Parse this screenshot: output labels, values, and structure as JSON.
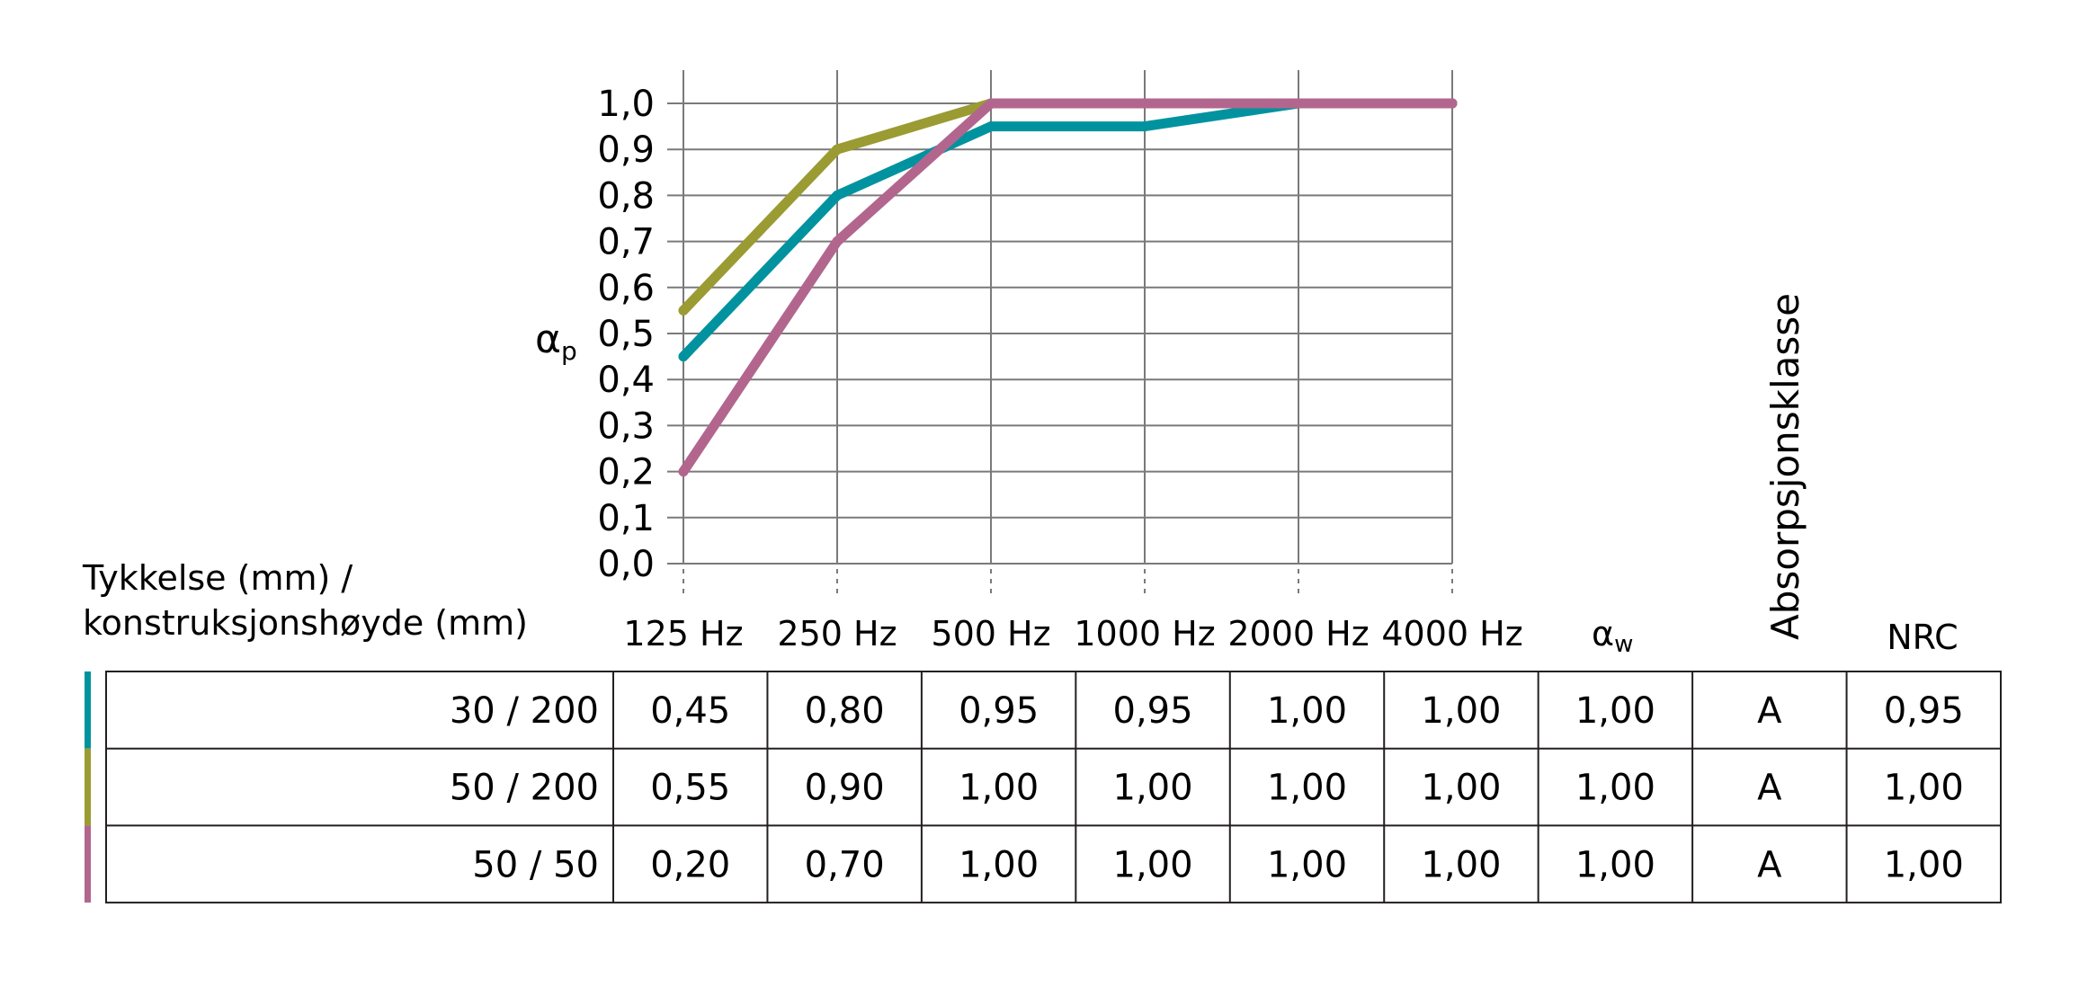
{
  "chart_data": {
    "type": "line",
    "ylabel": "αp",
    "ylabel_main": "α",
    "ylabel_sub": "p",
    "ylim": [
      0.0,
      1.0
    ],
    "yticks": [
      "0,0",
      "0,1",
      "0,2",
      "0,3",
      "0,4",
      "0,5",
      "0,6",
      "0,7",
      "0,8",
      "0,9",
      "1,0"
    ],
    "categories": [
      "125 Hz",
      "250 Hz",
      "500 Hz",
      "1000 Hz",
      "2000 Hz",
      "4000 Hz"
    ],
    "grid": true,
    "series": [
      {
        "color": "#00939f",
        "values": [
          0.45,
          0.8,
          0.95,
          0.95,
          1.0,
          1.0
        ]
      },
      {
        "color": "#9a9b32",
        "values": [
          0.55,
          0.9,
          1.0,
          1.0,
          1.0,
          1.0
        ]
      },
      {
        "color": "#b2668e",
        "values": [
          0.2,
          0.7,
          1.0,
          1.0,
          1.0,
          1.0
        ]
      }
    ]
  },
  "table": {
    "row_header_line1": "Tykkelse (mm) /",
    "row_header_line2": "konstruksjonshøyde (mm)",
    "aw_main": "α",
    "aw_sub": "w",
    "absorption_class_label": "Absorpsjonsklasse",
    "nrc_label": "NRC",
    "rows": [
      {
        "label": "30 / 200",
        "color": "#00939f",
        "values": [
          "0,45",
          "0,80",
          "0,95",
          "0,95",
          "1,00",
          "1,00",
          "1,00",
          "A",
          "0,95"
        ]
      },
      {
        "label": "50 / 200",
        "color": "#9a9b32",
        "values": [
          "0,55",
          "0,90",
          "1,00",
          "1,00",
          "1,00",
          "1,00",
          "1,00",
          "A",
          "1,00"
        ]
      },
      {
        "label": "50 / 50",
        "color": "#b2668e",
        "values": [
          "0,20",
          "0,70",
          "1,00",
          "1,00",
          "1,00",
          "1,00",
          "1,00",
          "A",
          "1,00"
        ]
      }
    ]
  }
}
